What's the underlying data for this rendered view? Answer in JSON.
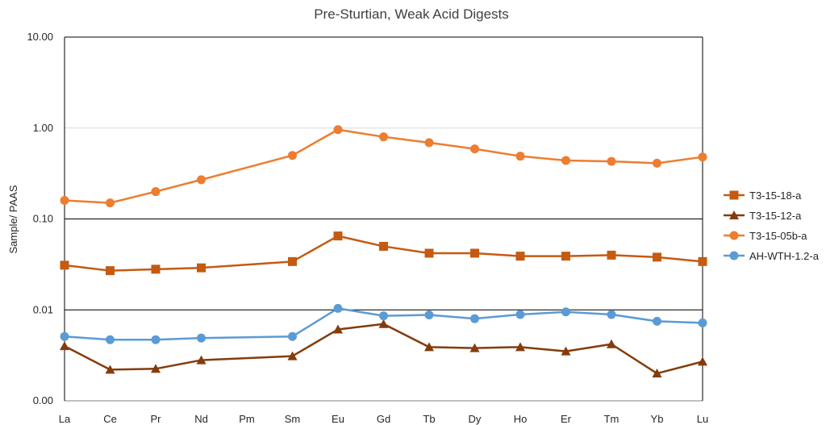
{
  "chart_data": {
    "type": "line",
    "title": "Pre-Sturtian, Weak Acid Digests",
    "xlabel": "",
    "ylabel": "Sample/ PAAS",
    "y_scale": "log",
    "ylim": [
      0.001,
      10
    ],
    "y_ticks": [
      0.001,
      0.01,
      0.1,
      1,
      10
    ],
    "y_tick_labels": [
      "0.00",
      "0.01",
      "0.10",
      "1.00",
      "10.00"
    ],
    "categories": [
      "La",
      "Ce",
      "Pr",
      "Nd",
      "Pm",
      "Sm",
      "Eu",
      "Gd",
      "Tb",
      "Dy",
      "Ho",
      "Er",
      "Tm",
      "Yb",
      "Lu"
    ],
    "grid": "horizontal",
    "legend_position": "right",
    "series": [
      {
        "name": "T3-15-18-a",
        "color": "#C55A11",
        "marker": "square",
        "values": [
          0.031,
          0.027,
          0.028,
          0.029,
          null,
          0.034,
          0.065,
          0.05,
          0.042,
          0.042,
          0.039,
          0.039,
          0.04,
          0.038,
          0.034
        ]
      },
      {
        "name": "T3-15-12-a",
        "color": "#843C0C",
        "marker": "triangle",
        "values": [
          0.004,
          0.0022,
          0.00225,
          0.0028,
          null,
          0.0031,
          0.0061,
          0.007,
          0.0039,
          0.0038,
          0.0039,
          0.0035,
          0.0042,
          0.002,
          0.0027
        ]
      },
      {
        "name": "T3-15-05b-a",
        "color": "#ED7D31",
        "marker": "circle",
        "values": [
          0.16,
          0.15,
          0.2,
          0.27,
          null,
          0.5,
          0.96,
          0.8,
          0.69,
          0.59,
          0.49,
          0.44,
          0.43,
          0.41,
          0.48
        ]
      },
      {
        "name": "AH-WTH-1.2-a",
        "color": "#5B9BD5",
        "marker": "circle",
        "values": [
          0.0051,
          0.0047,
          0.0047,
          0.0049,
          null,
          0.0051,
          0.0104,
          0.0086,
          0.0088,
          0.008,
          0.0089,
          0.0095,
          0.0089,
          0.0075,
          0.0072
        ]
      }
    ]
  }
}
